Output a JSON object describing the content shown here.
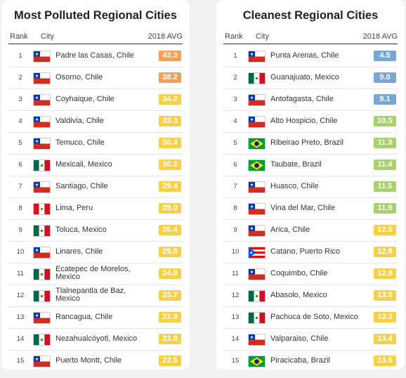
{
  "left": {
    "title": "Most Polluted Regional Cities",
    "headers": {
      "rank": "Rank",
      "city": "City",
      "avg": "2018 AVG"
    },
    "rows": [
      {
        "rank": "1",
        "flag": "chile-flag-icon",
        "city": "Padre las Casas, Chile",
        "avg": "43.3",
        "color": "#f0a05a"
      },
      {
        "rank": "2",
        "flag": "chile-flag-icon",
        "city": "Osorno, Chile",
        "avg": "38.2",
        "color": "#f0a05a"
      },
      {
        "rank": "3",
        "flag": "chile-flag-icon",
        "city": "Coyhaique, Chile",
        "avg": "34.2",
        "color": "#f7d04a"
      },
      {
        "rank": "4",
        "flag": "chile-flag-icon",
        "city": "Valdivia, Chile",
        "avg": "33.3",
        "color": "#f7d04a"
      },
      {
        "rank": "5",
        "flag": "chile-flag-icon",
        "city": "Temuco, Chile",
        "avg": "30.4",
        "color": "#f7d04a"
      },
      {
        "rank": "6",
        "flag": "mexico-flag-icon",
        "city": "Mexicali, Mexico",
        "avg": "30.2",
        "color": "#f7d04a"
      },
      {
        "rank": "7",
        "flag": "chile-flag-icon",
        "city": "Santiago, Chile",
        "avg": "29.4",
        "color": "#f7d04a"
      },
      {
        "rank": "8",
        "flag": "peru-flag-icon",
        "city": "Lima, Peru",
        "avg": "28.0",
        "color": "#f7d04a"
      },
      {
        "rank": "9",
        "flag": "mexico-flag-icon",
        "city": "Toluca, Mexico",
        "avg": "26.4",
        "color": "#f7d04a"
      },
      {
        "rank": "10",
        "flag": "chile-flag-icon",
        "city": "Linares, Chile",
        "avg": "25.5",
        "color": "#f7d04a"
      },
      {
        "rank": "11",
        "flag": "mexico-flag-icon",
        "city": "Ecatepec de Morelos, Mexico",
        "avg": "24.9",
        "color": "#f7d04a"
      },
      {
        "rank": "12",
        "flag": "mexico-flag-icon",
        "city": "Tlalnepantla de Baz, Mexico",
        "avg": "23.7",
        "color": "#f7d04a"
      },
      {
        "rank": "13",
        "flag": "chile-flag-icon",
        "city": "Rancagua, Chile",
        "avg": "22.9",
        "color": "#f7d04a"
      },
      {
        "rank": "14",
        "flag": "mexico-flag-icon",
        "city": "Nezahualcóyotl, Mexico",
        "avg": "22.8",
        "color": "#f7d04a"
      },
      {
        "rank": "15",
        "flag": "chile-flag-icon",
        "city": "Puerto Montt, Chile",
        "avg": "22.6",
        "color": "#f7d04a"
      }
    ]
  },
  "right": {
    "title": "Cleanest Regional Cities",
    "headers": {
      "rank": "Rank",
      "city": "City",
      "avg": "2018 AVG"
    },
    "rows": [
      {
        "rank": "1",
        "flag": "chile-flag-icon",
        "city": "Punta Arenas, Chile",
        "avg": "4.5",
        "color": "#7aa6d4"
      },
      {
        "rank": "2",
        "flag": "mexico-flag-icon",
        "city": "Guanajuato, Mexico",
        "avg": "9.0",
        "color": "#7aa6d4"
      },
      {
        "rank": "3",
        "flag": "chile-flag-icon",
        "city": "Antofagasta, Chile",
        "avg": "9.1",
        "color": "#7aa6d4"
      },
      {
        "rank": "4",
        "flag": "chile-flag-icon",
        "city": "Alto Hospicio, Chile",
        "avg": "10.5",
        "color": "#a8d26a"
      },
      {
        "rank": "5",
        "flag": "brazil-flag-icon",
        "city": "Ribeirao Preto, Brazil",
        "avg": "11.3",
        "color": "#a8d26a"
      },
      {
        "rank": "6",
        "flag": "brazil-flag-icon",
        "city": "Taubate, Brazil",
        "avg": "11.4",
        "color": "#a8d26a"
      },
      {
        "rank": "7",
        "flag": "chile-flag-icon",
        "city": "Huasco, Chile",
        "avg": "11.5",
        "color": "#a8d26a"
      },
      {
        "rank": "8",
        "flag": "chile-flag-icon",
        "city": "Vina del Mar, Chile",
        "avg": "11.9",
        "color": "#a8d26a"
      },
      {
        "rank": "9",
        "flag": "chile-flag-icon",
        "city": "Arica, Chile",
        "avg": "12.5",
        "color": "#f7d04a"
      },
      {
        "rank": "10",
        "flag": "puerto-rico-flag-icon",
        "city": "Catano, Puerto Rico",
        "avg": "12.8",
        "color": "#f7d04a"
      },
      {
        "rank": "11",
        "flag": "chile-flag-icon",
        "city": "Coquimbo, Chile",
        "avg": "12.8",
        "color": "#f7d04a"
      },
      {
        "rank": "12",
        "flag": "mexico-flag-icon",
        "city": "Abasolo, Mexico",
        "avg": "13.0",
        "color": "#f7d04a"
      },
      {
        "rank": "13",
        "flag": "mexico-flag-icon",
        "city": "Pachuca de Soto, Mexico",
        "avg": "13.3",
        "color": "#f7d04a"
      },
      {
        "rank": "14",
        "flag": "chile-flag-icon",
        "city": "Valparaiso, Chile",
        "avg": "13.4",
        "color": "#f7d04a"
      },
      {
        "rank": "15",
        "flag": "brazil-flag-icon",
        "city": "Piracicaba, Brazil",
        "avg": "13.6",
        "color": "#f7d04a"
      }
    ]
  }
}
